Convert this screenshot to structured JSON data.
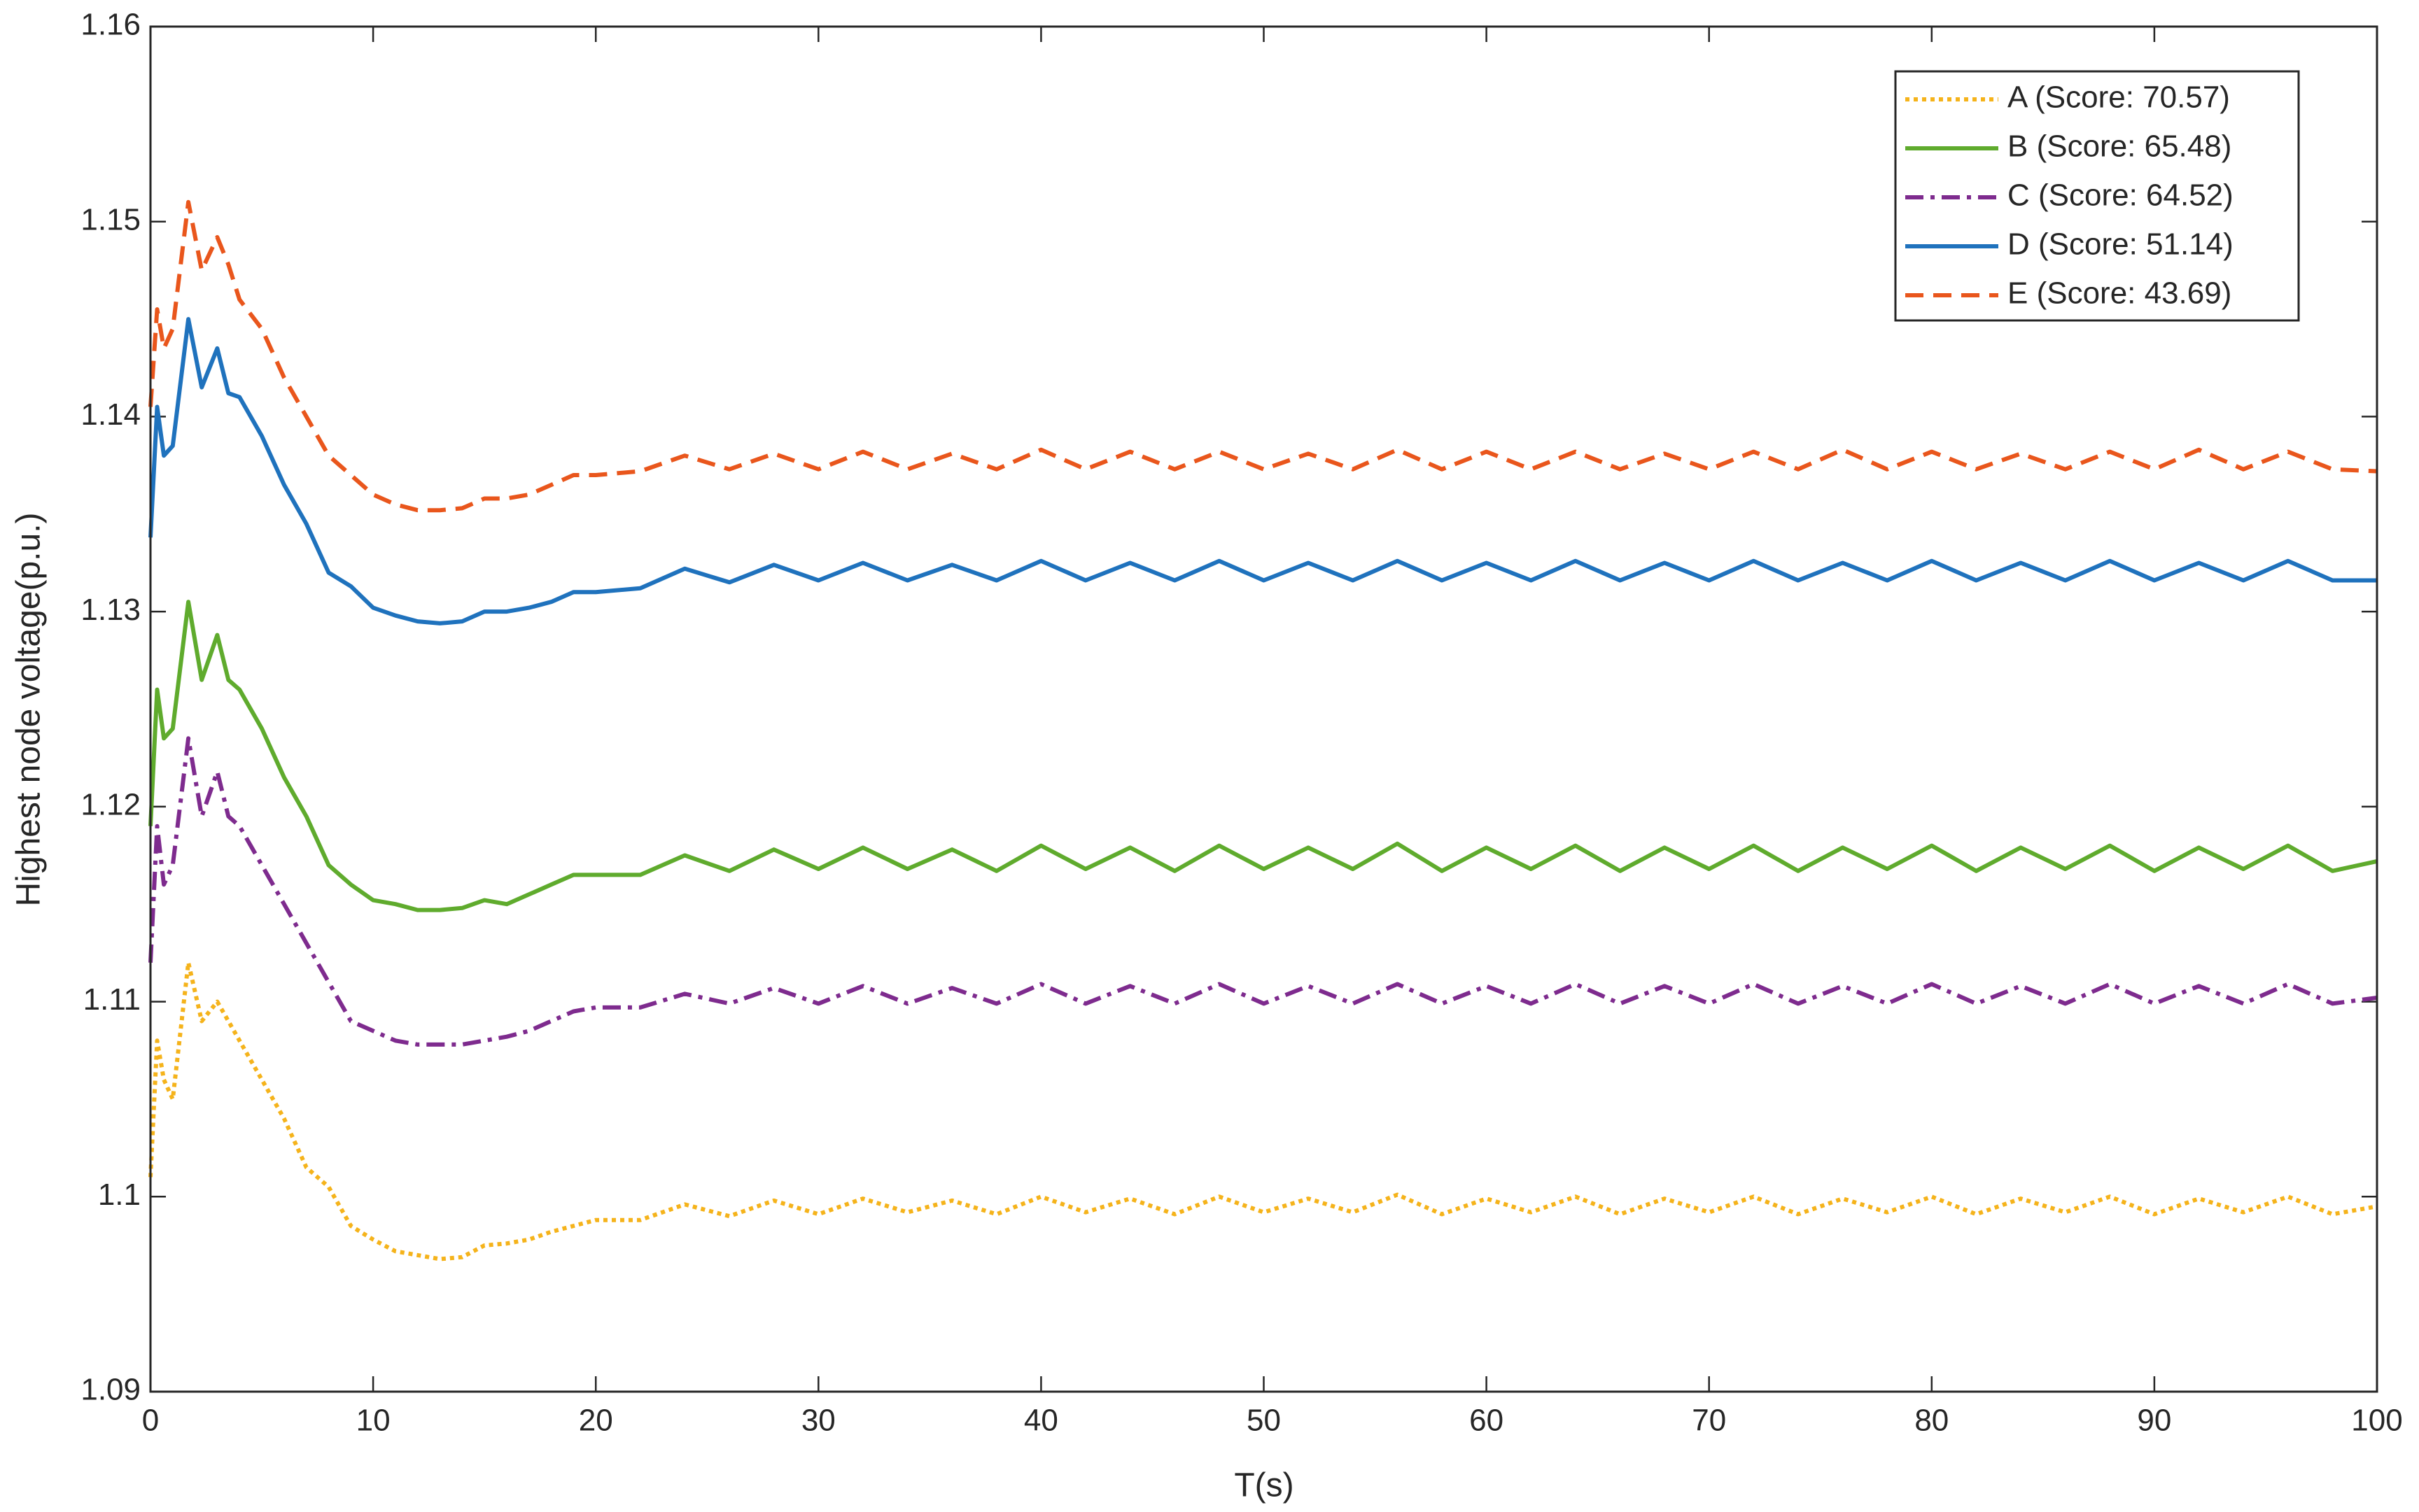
{
  "chart_data": {
    "type": "line",
    "xlabel": "T(s)",
    "ylabel": "Highest node voltage(p.u.)",
    "x": [
      0,
      0.3,
      0.6,
      1,
      1.7,
      2.3,
      3,
      3.5,
      4,
      5,
      6,
      7,
      8,
      9,
      10,
      11,
      12,
      13,
      14,
      15,
      16,
      17,
      18,
      19,
      20,
      22,
      24,
      26,
      28,
      30,
      32,
      34,
      36,
      38,
      40,
      42,
      44,
      46,
      48,
      50,
      52,
      54,
      56,
      58,
      60,
      62,
      64,
      66,
      68,
      70,
      72,
      74,
      76,
      78,
      80,
      82,
      84,
      86,
      88,
      90,
      92,
      94,
      96,
      98,
      100
    ],
    "series": [
      {
        "name": "A (Score: 70.57)",
        "color": "#f5b31b",
        "line_style": "dotted",
        "values": [
          1.101,
          1.108,
          1.106,
          1.105,
          1.112,
          1.109,
          1.11,
          1.109,
          1.108,
          1.106,
          1.104,
          1.1015,
          1.1005,
          1.0985,
          1.0978,
          1.0972,
          1.097,
          1.0968,
          1.0969,
          1.0975,
          1.0976,
          1.0978,
          1.0982,
          1.0985,
          1.0988,
          1.0988,
          1.0996,
          1.099,
          1.0998,
          1.0991,
          1.0999,
          1.0992,
          1.0998,
          1.0991,
          1.1,
          1.0992,
          1.0999,
          1.0991,
          1.1,
          1.0992,
          1.0999,
          1.0992,
          1.1001,
          1.0991,
          1.0999,
          1.0992,
          1.1,
          1.0991,
          1.0999,
          1.0992,
          1.1,
          1.0991,
          1.0999,
          1.0992,
          1.1,
          1.0991,
          1.0999,
          1.0992,
          1.1,
          1.0991,
          1.0999,
          1.0992,
          1.1,
          1.0991,
          1.0995
        ]
      },
      {
        "name": "B (Score: 65.48)",
        "color": "#5fab2d",
        "line_style": "solid",
        "values": [
          1.119,
          1.126,
          1.1235,
          1.124,
          1.1305,
          1.1265,
          1.1288,
          1.1265,
          1.126,
          1.124,
          1.1215,
          1.1195,
          1.117,
          1.116,
          1.1152,
          1.115,
          1.1147,
          1.1147,
          1.1148,
          1.1152,
          1.115,
          1.1155,
          1.116,
          1.1165,
          1.1165,
          1.1165,
          1.1175,
          1.1167,
          1.1178,
          1.1168,
          1.1179,
          1.1168,
          1.1178,
          1.1167,
          1.118,
          1.1168,
          1.1179,
          1.1167,
          1.118,
          1.1168,
          1.1179,
          1.1168,
          1.1181,
          1.1167,
          1.1179,
          1.1168,
          1.118,
          1.1167,
          1.1179,
          1.1168,
          1.118,
          1.1167,
          1.1179,
          1.1168,
          1.118,
          1.1167,
          1.1179,
          1.1168,
          1.118,
          1.1167,
          1.1179,
          1.1168,
          1.118,
          1.1167,
          1.1172
        ]
      },
      {
        "name": "C (Score: 64.52)",
        "color": "#7e2b8e",
        "line_style": "dashdot",
        "values": [
          1.112,
          1.119,
          1.116,
          1.117,
          1.1235,
          1.1195,
          1.1218,
          1.1195,
          1.119,
          1.117,
          1.115,
          1.113,
          1.111,
          1.109,
          1.1085,
          1.108,
          1.1078,
          1.1078,
          1.1078,
          1.108,
          1.1082,
          1.1085,
          1.109,
          1.1095,
          1.1097,
          1.1097,
          1.1104,
          1.1099,
          1.1107,
          1.1099,
          1.1108,
          1.1099,
          1.1107,
          1.1099,
          1.1109,
          1.1099,
          1.1108,
          1.1099,
          1.1109,
          1.1099,
          1.1108,
          1.1099,
          1.1109,
          1.1099,
          1.1108,
          1.1099,
          1.1109,
          1.1099,
          1.1108,
          1.1099,
          1.1109,
          1.1099,
          1.1108,
          1.1099,
          1.1109,
          1.1099,
          1.1108,
          1.1099,
          1.1109,
          1.1099,
          1.1108,
          1.1099,
          1.1109,
          1.1099,
          1.1102
        ]
      },
      {
        "name": "D (Score: 51.14)",
        "color": "#1f72bd",
        "line_style": "solid",
        "values": [
          1.1338,
          1.1405,
          1.138,
          1.1385,
          1.145,
          1.1415,
          1.1435,
          1.1412,
          1.141,
          1.139,
          1.1365,
          1.1345,
          1.132,
          1.1313,
          1.1302,
          1.1298,
          1.1295,
          1.1294,
          1.1295,
          1.13,
          1.13,
          1.1302,
          1.1305,
          1.131,
          1.131,
          1.1312,
          1.1322,
          1.1315,
          1.1324,
          1.1316,
          1.1325,
          1.1316,
          1.1324,
          1.1316,
          1.1326,
          1.1316,
          1.1325,
          1.1316,
          1.1326,
          1.1316,
          1.1325,
          1.1316,
          1.1326,
          1.1316,
          1.1325,
          1.1316,
          1.1326,
          1.1316,
          1.1325,
          1.1316,
          1.1326,
          1.1316,
          1.1325,
          1.1316,
          1.1326,
          1.1316,
          1.1325,
          1.1316,
          1.1326,
          1.1316,
          1.1325,
          1.1316,
          1.1326,
          1.1316,
          1.1316
        ]
      },
      {
        "name": "E (Score: 43.69)",
        "color": "#e9561c",
        "line_style": "dashed",
        "values": [
          1.1405,
          1.1455,
          1.1435,
          1.1445,
          1.151,
          1.1475,
          1.1492,
          1.1478,
          1.146,
          1.1445,
          1.142,
          1.14,
          1.138,
          1.137,
          1.136,
          1.1355,
          1.1352,
          1.1352,
          1.1353,
          1.1358,
          1.1358,
          1.136,
          1.1365,
          1.137,
          1.137,
          1.1372,
          1.138,
          1.1373,
          1.1381,
          1.1373,
          1.1382,
          1.1373,
          1.1381,
          1.1373,
          1.1383,
          1.1373,
          1.1382,
          1.1373,
          1.1382,
          1.1373,
          1.1381,
          1.1373,
          1.1383,
          1.1373,
          1.1382,
          1.1373,
          1.1382,
          1.1373,
          1.1381,
          1.1373,
          1.1382,
          1.1373,
          1.1383,
          1.1373,
          1.1382,
          1.1373,
          1.1381,
          1.1373,
          1.1382,
          1.1373,
          1.1383,
          1.1373,
          1.1382,
          1.1373,
          1.1372
        ]
      }
    ],
    "xlim": [
      0,
      100
    ],
    "xticks": [
      0,
      10,
      20,
      30,
      40,
      50,
      60,
      70,
      80,
      90,
      100
    ],
    "ylim": [
      1.09,
      1.16
    ],
    "yticks": [
      1.09,
      1.1,
      1.11,
      1.12,
      1.13,
      1.14,
      1.15,
      1.16
    ],
    "grid": false,
    "legend": "upper right"
  }
}
